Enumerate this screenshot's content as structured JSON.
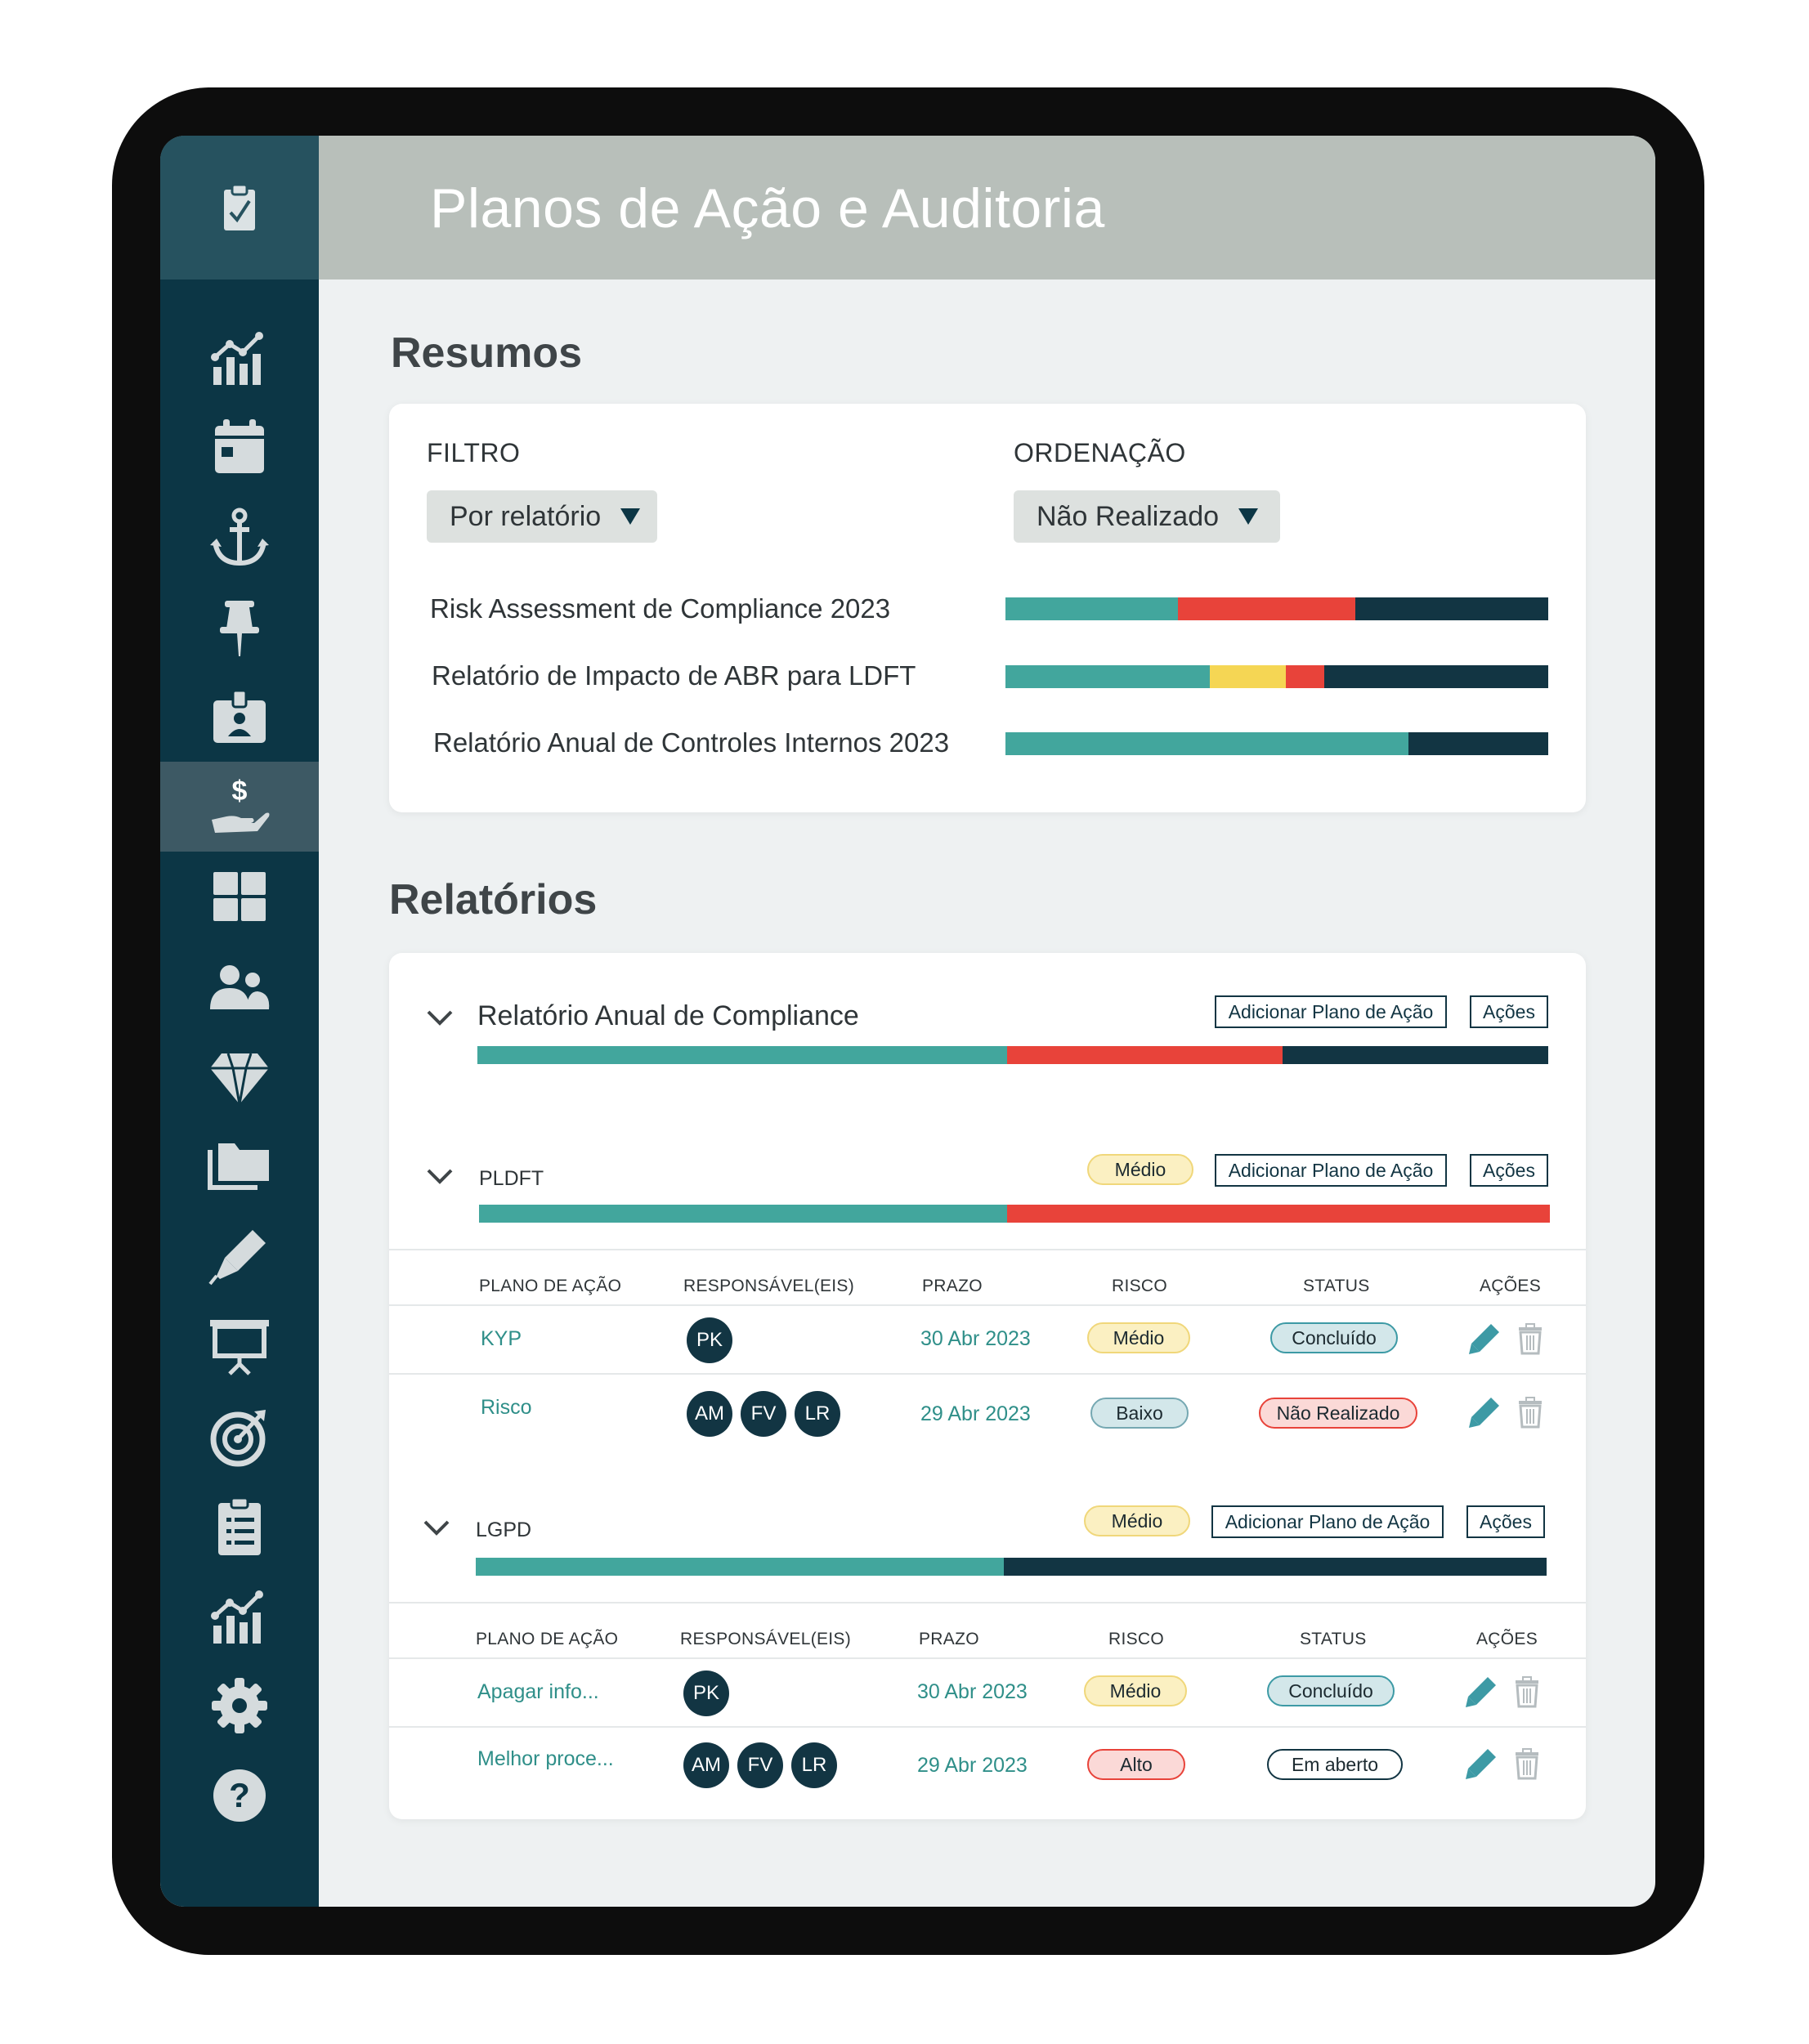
{
  "header": {
    "title": "Planos de Ação e Auditoria"
  },
  "sidebar": {
    "logo_icon": "clipboard-check-icon",
    "items": [
      {
        "icon": "analytics-chart-icon"
      },
      {
        "icon": "calendar-icon"
      },
      {
        "icon": "anchor-icon"
      },
      {
        "icon": "pushpin-icon"
      },
      {
        "icon": "id-badge-icon"
      },
      {
        "icon": "hand-dollar-icon",
        "active": true
      },
      {
        "icon": "dashboard-grid-icon"
      },
      {
        "icon": "users-icon"
      },
      {
        "icon": "diamond-icon"
      },
      {
        "icon": "folders-icon"
      },
      {
        "icon": "pen-icon"
      },
      {
        "icon": "presentation-icon"
      },
      {
        "icon": "target-icon"
      },
      {
        "icon": "checklist-icon"
      },
      {
        "icon": "bar-chart-icon"
      },
      {
        "icon": "settings-icon"
      },
      {
        "icon": "help-icon"
      }
    ]
  },
  "resumos": {
    "title": "Resumos",
    "filter_label": "FILTRO",
    "filter_value": "Por relatório",
    "order_label": "ORDENAÇÃO",
    "order_value": "Não Realizado",
    "rows": [
      {
        "label": "Risk Assessment de Compliance 2023",
        "segments": [
          {
            "color": "teal",
            "fraction": 0.318
          },
          {
            "color": "red",
            "fraction": 0.327
          },
          {
            "color": "navy",
            "fraction": 0.355
          }
        ]
      },
      {
        "label": "Relatório de Impacto de ABR para LDFT",
        "segments": [
          {
            "color": "teal",
            "fraction": 0.377
          },
          {
            "color": "yellow",
            "fraction": 0.14
          },
          {
            "color": "red",
            "fraction": 0.07
          },
          {
            "color": "navy",
            "fraction": 0.413
          }
        ]
      },
      {
        "label": "Relatório Anual de Controles Internos 2023",
        "segments": [
          {
            "color": "teal",
            "fraction": 0.743
          },
          {
            "color": "navy",
            "fraction": 0.257
          }
        ]
      }
    ]
  },
  "relatorios": {
    "title": "Relatórios",
    "add_label": "Adicionar Plano de Ação",
    "actions_label": "Ações",
    "columns": [
      "PLANO DE AÇÃO",
      "RESPONSÁVEL(EIS)",
      "PRAZO",
      "RISCO",
      "STATUS",
      "AÇÕES"
    ],
    "groups": [
      {
        "title": "Relatório Anual de Compliance",
        "segments": [
          {
            "color": "teal",
            "fraction": 0.495
          },
          {
            "color": "red",
            "fraction": 0.257
          },
          {
            "color": "navy",
            "fraction": 0.248
          }
        ]
      },
      {
        "title": "PLDFT",
        "risk": "Médio",
        "segments": [
          {
            "color": "teal",
            "fraction": 0.493
          },
          {
            "color": "red",
            "fraction": 0.507
          }
        ],
        "rows": [
          {
            "plan": "KYP",
            "people": [
              "PK"
            ],
            "deadline": "30 Abr 2023",
            "risk": "Médio",
            "risk_class": "medio",
            "status": "Concluído",
            "status_class": "concl"
          },
          {
            "plan": "Risco",
            "people": [
              "AM",
              "FV",
              "LR"
            ],
            "deadline": "29 Abr 2023",
            "risk": "Baixo",
            "risk_class": "baixo",
            "status": "Não Realizado",
            "status_class": "nreal"
          }
        ]
      },
      {
        "title": "LGPD",
        "risk": "Médio",
        "segments": [
          {
            "color": "teal",
            "fraction": 0.493
          },
          {
            "color": "navy",
            "fraction": 0.507
          }
        ],
        "rows": [
          {
            "plan": "Apagar info...",
            "people": [
              "PK"
            ],
            "deadline": "30 Abr 2023",
            "risk": "Médio",
            "risk_class": "medio",
            "status": "Concluído",
            "status_class": "concl"
          },
          {
            "plan": "Melhor proce...",
            "people": [
              "AM",
              "FV",
              "LR"
            ],
            "deadline": "29 Abr 2023",
            "risk": "Alto",
            "risk_class": "alto",
            "status": "Em aberto",
            "status_class": "aberto"
          }
        ]
      }
    ]
  },
  "colors": {
    "teal": "#42a69d",
    "red": "#e8433a",
    "navy": "#123543",
    "yellow": "#f5d654"
  }
}
